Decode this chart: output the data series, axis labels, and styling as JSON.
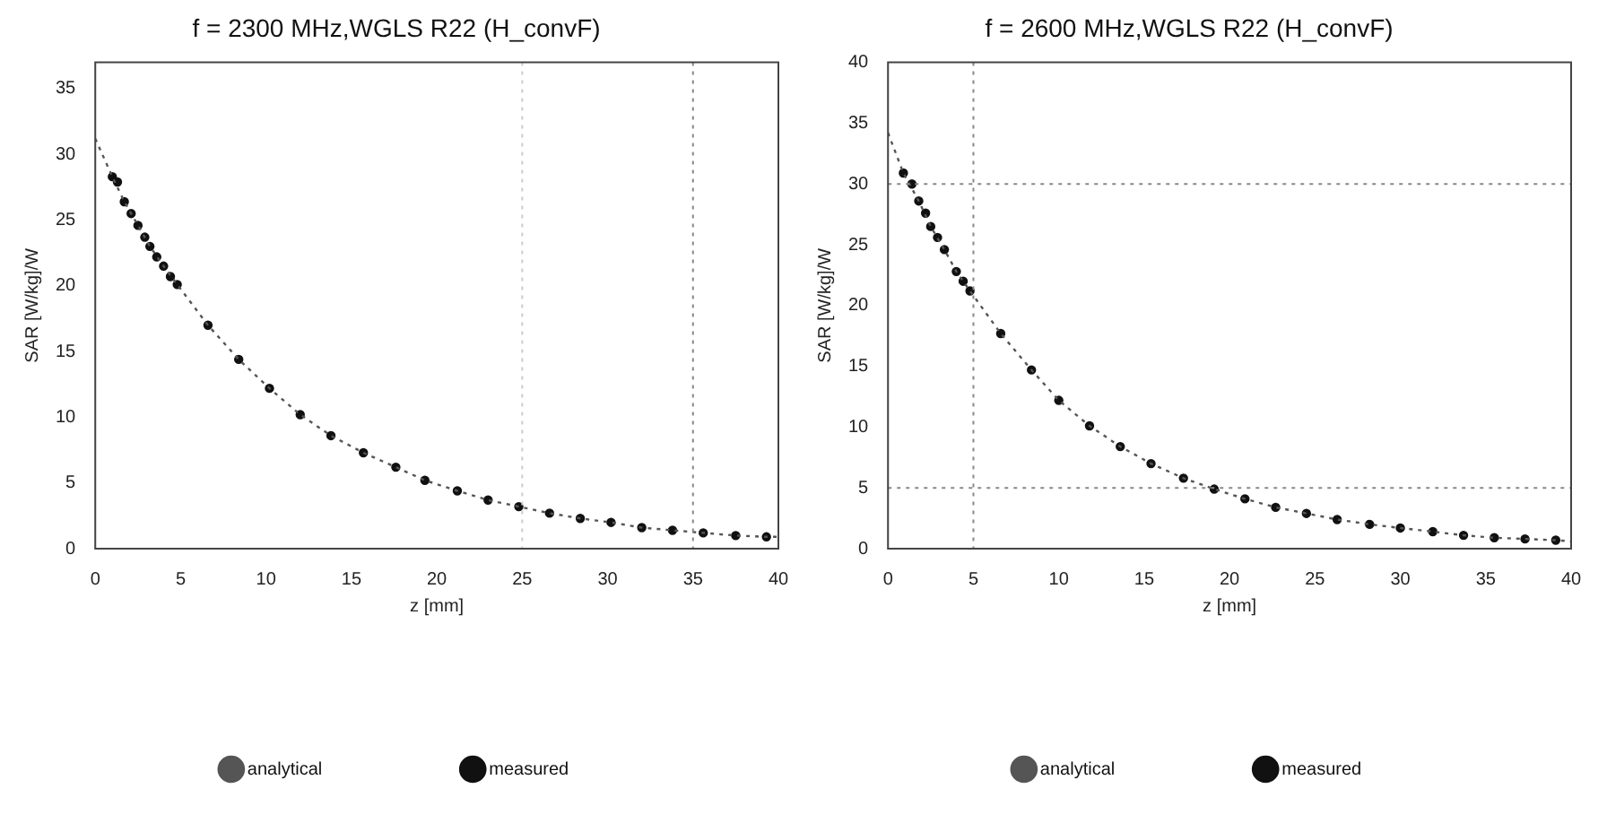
{
  "chart_data": [
    {
      "type": "line",
      "title": "f = 2300 MHz,WGLS R22 (H_convF)",
      "xlabel": "z [mm]",
      "ylabel": "SAR [W/kg]/W",
      "xlim": [
        0,
        40
      ],
      "xticks": [
        0,
        5,
        10,
        15,
        20,
        25,
        30,
        35,
        40
      ],
      "ylim": [
        0,
        37
      ],
      "yticks": [
        0,
        5,
        10,
        15,
        20,
        25,
        30,
        35
      ],
      "grid": false,
      "legend": "bottom",
      "ref_lines": [
        {
          "axis": "x",
          "value": 35,
          "line_style": "dotted",
          "color": "#888888"
        },
        {
          "axis": "x",
          "value": 25,
          "line_style": "dotted",
          "color": "#cccccc"
        }
      ],
      "series": [
        {
          "name": "analytical",
          "type": "line",
          "marker": "none",
          "line_style": "dotted",
          "color": "#555555",
          "x": [
            0,
            1,
            1.7,
            2.5,
            3.2,
            4,
            4.8,
            6.6,
            8.4,
            10.2,
            12,
            13.8,
            15.7,
            17.6,
            19.3,
            21.2,
            23,
            24.8,
            26.6,
            28.4,
            30.2,
            32,
            33.8,
            35.6,
            37.5,
            39.3,
            40
          ],
          "values": [
            31.2,
            28.3,
            26.4,
            24.6,
            23,
            21.5,
            20.1,
            17,
            14.4,
            12.2,
            10.2,
            8.6,
            7.3,
            6.2,
            5.2,
            4.4,
            3.7,
            3.2,
            2.7,
            2.3,
            2,
            1.6,
            1.4,
            1.2,
            1,
            0.9,
            0.9
          ]
        },
        {
          "name": "measured",
          "type": "scatter",
          "marker": "circle",
          "color": "#111111",
          "x": [
            1,
            1.3,
            1.7,
            2.1,
            2.5,
            2.9,
            3.2,
            3.6,
            4,
            4.4,
            4.8,
            6.6,
            8.4,
            10.2,
            12,
            13.8,
            15.7,
            17.6,
            19.3,
            21.2,
            23,
            24.8,
            26.6,
            28.4,
            30.2,
            32,
            33.8,
            35.6,
            37.5,
            39.3
          ],
          "values": [
            28.3,
            27.9,
            26.4,
            25.5,
            24.6,
            23.7,
            23,
            22.2,
            21.5,
            20.7,
            20.1,
            17,
            14.4,
            12.2,
            10.2,
            8.6,
            7.3,
            6.2,
            5.2,
            4.4,
            3.7,
            3.2,
            2.7,
            2.3,
            2,
            1.6,
            1.4,
            1.2,
            1,
            0.9
          ]
        }
      ]
    },
    {
      "type": "line",
      "title": "f = 2600 MHz,WGLS R22 (H_convF)",
      "xlabel": "z [mm]",
      "ylabel": "SAR [W/kg]/W",
      "xlim": [
        0,
        40
      ],
      "xticks": [
        0,
        5,
        10,
        15,
        20,
        25,
        30,
        35,
        40
      ],
      "ylim": [
        0,
        40
      ],
      "yticks": [
        0,
        5,
        10,
        15,
        20,
        25,
        30,
        35,
        40
      ],
      "grid": false,
      "legend": "bottom",
      "ref_lines": [
        {
          "axis": "x",
          "value": 5,
          "line_style": "dotted",
          "color": "#888888"
        },
        {
          "axis": "y",
          "value": 30,
          "line_style": "dotted",
          "color": "#888888"
        },
        {
          "axis": "y",
          "value": 5,
          "line_style": "dotted",
          "color": "#888888"
        }
      ],
      "series": [
        {
          "name": "analytical",
          "type": "line",
          "marker": "none",
          "line_style": "dotted",
          "color": "#555555",
          "x": [
            0,
            0.9,
            1.8,
            2.5,
            3.3,
            4,
            4.8,
            6.6,
            8.4,
            10,
            11.8,
            13.6,
            15.4,
            17.3,
            19.1,
            20.9,
            22.7,
            24.5,
            26.3,
            28.2,
            30,
            31.9,
            33.7,
            35.5,
            37.3,
            39.1,
            40
          ],
          "values": [
            34.2,
            30.9,
            28.6,
            26.5,
            24.6,
            22.8,
            21.2,
            17.7,
            14.7,
            12.2,
            10.1,
            8.4,
            7,
            5.8,
            4.9,
            4.1,
            3.4,
            2.9,
            2.4,
            2,
            1.7,
            1.4,
            1.1,
            0.9,
            0.8,
            0.7,
            0.6
          ]
        },
        {
          "name": "measured",
          "type": "scatter",
          "marker": "circle",
          "color": "#111111",
          "x": [
            0.9,
            1.4,
            1.8,
            2.2,
            2.5,
            2.9,
            3.3,
            4,
            4.4,
            4.8,
            6.6,
            8.4,
            10,
            11.8,
            13.6,
            15.4,
            17.3,
            19.1,
            20.9,
            22.7,
            24.5,
            26.3,
            28.2,
            30,
            31.9,
            33.7,
            35.5,
            37.3,
            39.1
          ],
          "values": [
            30.9,
            30,
            28.6,
            27.6,
            26.5,
            25.6,
            24.6,
            22.8,
            22,
            21.2,
            17.7,
            14.7,
            12.2,
            10.1,
            8.4,
            7,
            5.8,
            4.9,
            4.1,
            3.4,
            2.9,
            2.4,
            2,
            1.7,
            1.4,
            1.1,
            0.9,
            0.8,
            0.7
          ]
        }
      ]
    }
  ]
}
